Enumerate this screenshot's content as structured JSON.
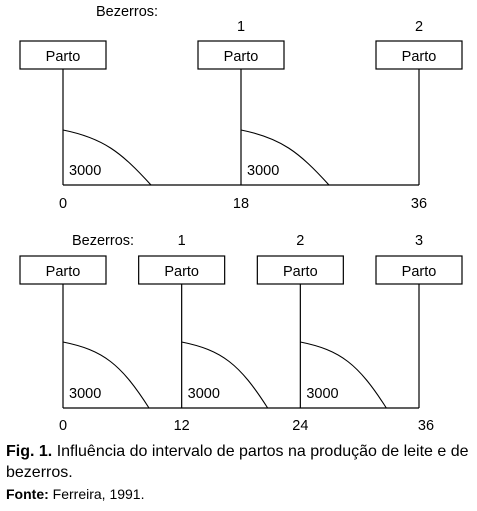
{
  "diagrams": [
    {
      "calves_label": "Bezerros:",
      "events": [
        {
          "month": "0",
          "calf": "",
          "box": "Parto",
          "yield": "3000"
        },
        {
          "month": "18",
          "calf": "1",
          "box": "Parto",
          "yield": "3000"
        },
        {
          "month": "36",
          "calf": "2",
          "box": "Parto",
          "yield": ""
        }
      ]
    },
    {
      "calves_label": "Bezerros:",
      "events": [
        {
          "month": "0",
          "calf": "",
          "box": "Parto",
          "yield": "3000"
        },
        {
          "month": "12",
          "calf": "1",
          "box": "Parto",
          "yield": "3000"
        },
        {
          "month": "24",
          "calf": "2",
          "box": "Parto",
          "yield": "3000"
        },
        {
          "month": "36",
          "calf": "3",
          "box": "Parto",
          "yield": ""
        }
      ]
    }
  ],
  "caption": {
    "label": "Fig. 1.",
    "text": "Influência do intervalo de partos na produção de leite e de bezerros."
  },
  "source": {
    "label": "Fonte:",
    "text": "Ferreira, 1991."
  }
}
